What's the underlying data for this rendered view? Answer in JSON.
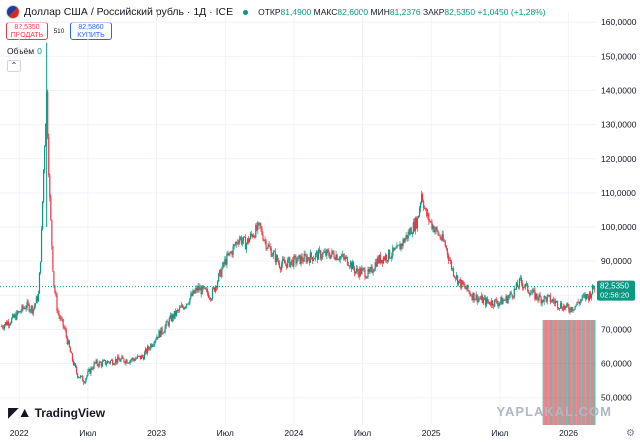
{
  "header": {
    "title": "Доллар США / Российский рубль · 1Д · ICE",
    "open_label": "ОТКР",
    "open_value": "81,4900",
    "high_label": "МАКС",
    "high_value": "82,6000",
    "low_label": "МИН",
    "low_value": "81,2376",
    "close_label": "ЗАКР",
    "close_value": "82,5350",
    "change": "+1,0450 (+1,28%)"
  },
  "trade": {
    "sell_price": "82,5350",
    "sell_label": "ПРОДАТЬ",
    "spread": "510",
    "buy_price": "82,5860",
    "buy_label": "КУПИТЬ"
  },
  "volume": {
    "label": "Объём",
    "value": "0"
  },
  "price_tag": {
    "price": "82,5350",
    "countdown": "02:56:20"
  },
  "branding": {
    "logo": "TradingView",
    "watermark": "YAPLAKAL.COM"
  },
  "colors": {
    "up": "#089981",
    "down": "#f23645",
    "accent": "#2962ff"
  },
  "chart_data": {
    "type": "candlestick",
    "title": "Доллар США / Российский рубль · 1Д · ICE",
    "ylim": [
      42,
      163
    ],
    "y_ticks": [
      "160,0000",
      "150,0000",
      "140,0000",
      "130,0000",
      "120,0000",
      "110,0000",
      "100,0000",
      "90,0000",
      "80,0000",
      "70,0000",
      "60,0000",
      "50,0000"
    ],
    "x_ticks": [
      "2022",
      "Июл",
      "2023",
      "Июл",
      "2024",
      "Июл",
      "2025",
      "Июл",
      "2026"
    ],
    "last_price": 82.535,
    "series": [
      {
        "x": [
          2021.87,
          2021.95,
          2022.0,
          2022.05,
          2022.1,
          2022.14,
          2022.16,
          2022.18,
          2022.2,
          2022.22,
          2022.25,
          2022.28,
          2022.33,
          2022.38,
          2022.42,
          2022.47,
          2022.5,
          2022.55,
          2022.6,
          2022.7,
          2022.8,
          2022.9,
          2023.0,
          2023.05,
          2023.1,
          2023.2,
          2023.3,
          2023.4,
          2023.5,
          2023.55,
          2023.6,
          2023.65,
          2023.7,
          2023.75,
          2023.8,
          2023.85,
          2023.9,
          2024.0,
          2024.1,
          2024.2,
          2024.3,
          2024.4,
          2024.45,
          2024.5,
          2024.55,
          2024.6,
          2024.7,
          2024.75,
          2024.8,
          2024.85,
          2024.9,
          2024.93,
          2024.96,
          2025.0,
          2025.05,
          2025.1,
          2025.15,
          2025.2,
          2025.25,
          2025.3,
          2025.35,
          2025.4,
          2025.45,
          2025.5,
          2025.55,
          2025.6,
          2025.65,
          2025.7,
          2025.75,
          2025.8,
          2025.85,
          2025.9,
          2025.95,
          2026.0,
          2026.05,
          2026.1,
          2026.15,
          2026.19
        ],
        "values": [
          71,
          73,
          75,
          77,
          76,
          80,
          95,
          120,
          139,
          110,
          84,
          75,
          70,
          62,
          57,
          55,
          57,
          60,
          60,
          61,
          61,
          62,
          68,
          70,
          73,
          77,
          82,
          80,
          90,
          93,
          97,
          95,
          98,
          100,
          95,
          92,
          89,
          90,
          91,
          92,
          92,
          90,
          87,
          87,
          86,
          90,
          92,
          93,
          96,
          99,
          102,
          110,
          104,
          101,
          98,
          95,
          88,
          84,
          82,
          80,
          79,
          78,
          78,
          78,
          79,
          81,
          84,
          82,
          80,
          79,
          79,
          78,
          77,
          76,
          77,
          79,
          80,
          82.535
        ]
      }
    ]
  }
}
